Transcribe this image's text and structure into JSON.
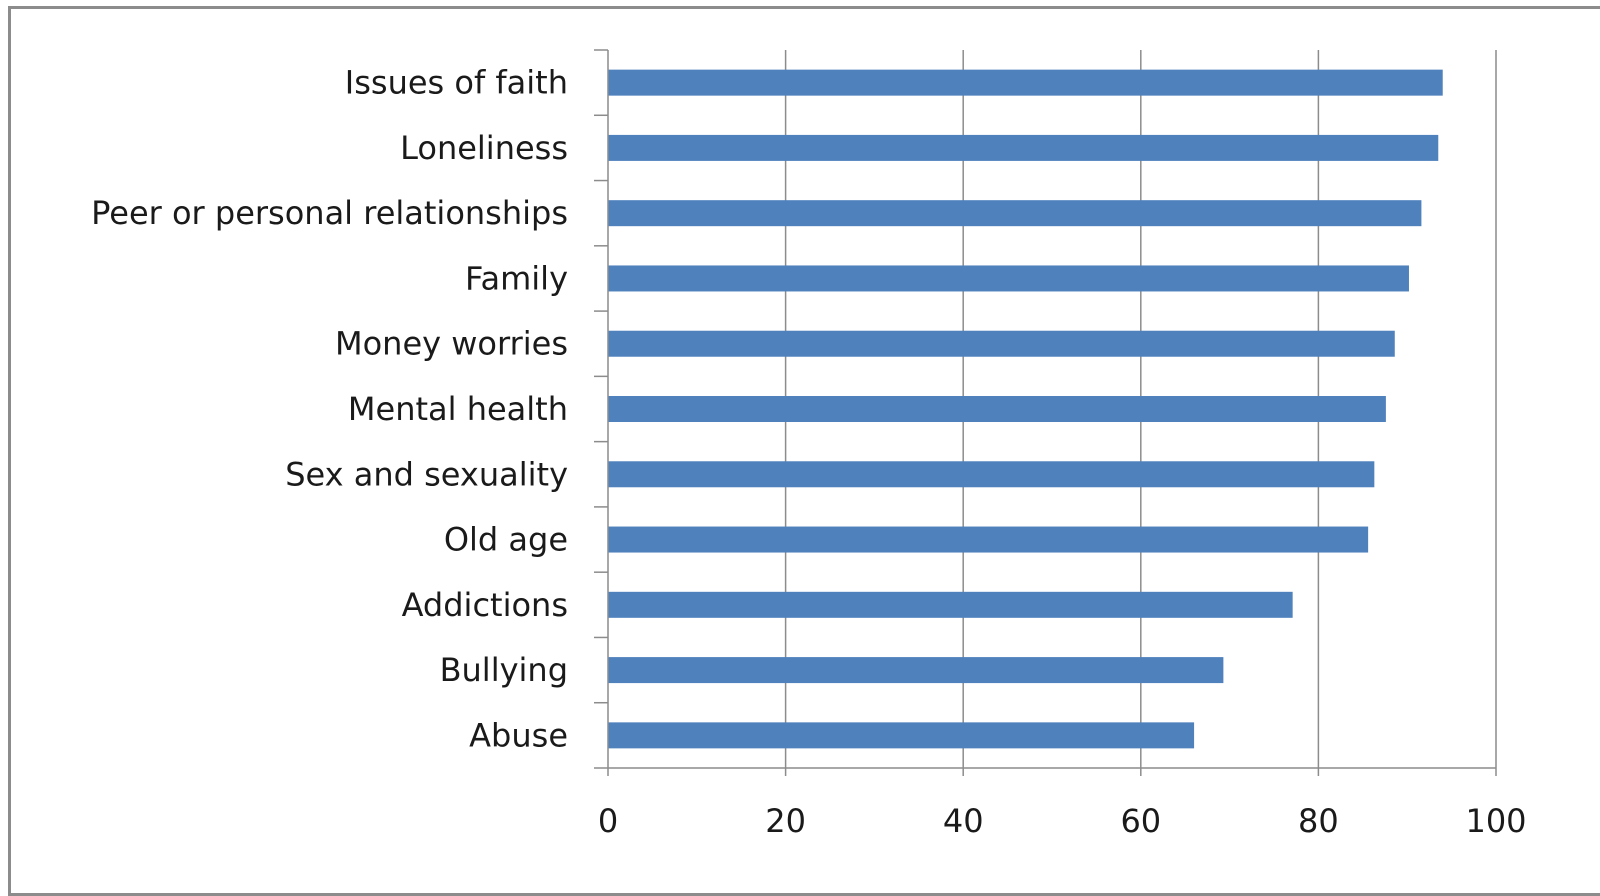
{
  "chart_data": {
    "type": "bar",
    "orientation": "horizontal",
    "categories": [
      "Issues of faith",
      "Loneliness",
      "Peer or personal relationships",
      "Family",
      "Money worries",
      "Mental health",
      "Sex and sexuality",
      "Old age",
      "Addictions",
      "Bullying",
      "Abuse"
    ],
    "values": [
      94,
      93.5,
      91.6,
      90.2,
      88.6,
      87.6,
      86.3,
      85.6,
      77.1,
      69.3,
      66
    ],
    "xlim": [
      0,
      100
    ],
    "xticks": [
      "0",
      "20",
      "40",
      "60",
      "80",
      "100"
    ],
    "grid": "vertical",
    "bar_color": "#4f81bd",
    "grid_color": "#8c8c8c",
    "axis_color": "#8c8c8c"
  }
}
